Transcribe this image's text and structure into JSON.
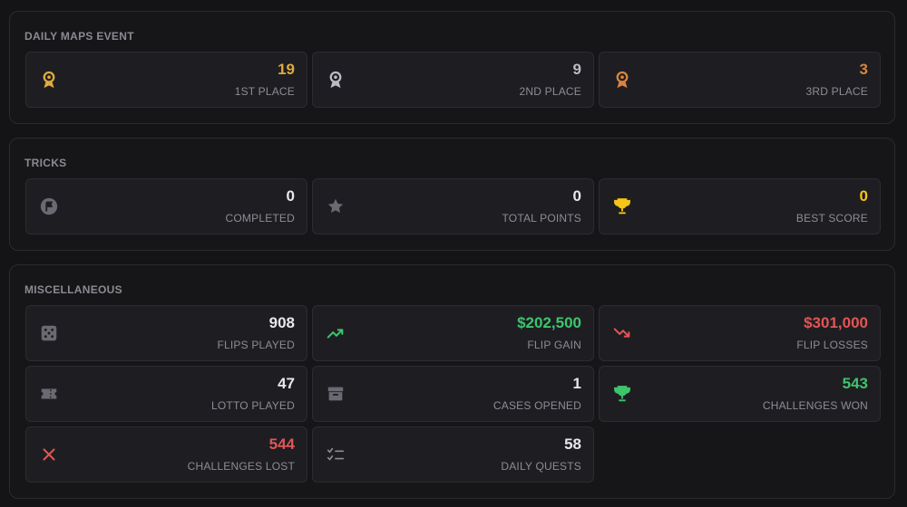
{
  "sections": [
    {
      "title": "DAILY MAPS EVENT",
      "cards": [
        {
          "value": "19",
          "label": "1ST PLACE"
        },
        {
          "value": "9",
          "label": "2ND PLACE"
        },
        {
          "value": "3",
          "label": "3RD PLACE"
        }
      ]
    },
    {
      "title": "TRICKS",
      "cards": [
        {
          "value": "0",
          "label": "COMPLETED"
        },
        {
          "value": "0",
          "label": "TOTAL POINTS"
        },
        {
          "value": "0",
          "label": "BEST SCORE"
        }
      ]
    },
    {
      "title": "MISCELLANEOUS",
      "cards": [
        {
          "value": "908",
          "label": "FLIPS PLAYED"
        },
        {
          "value": "$202,500",
          "label": "FLIP GAIN"
        },
        {
          "value": "$301,000",
          "label": "FLIP LOSSES"
        },
        {
          "value": "47",
          "label": "LOTTO PLAYED"
        },
        {
          "value": "1",
          "label": "CASES OPENED"
        },
        {
          "value": "543",
          "label": "CHALLENGES WON"
        },
        {
          "value": "544",
          "label": "CHALLENGES LOST"
        },
        {
          "value": "58",
          "label": "DAILY QUESTS"
        }
      ]
    }
  ]
}
